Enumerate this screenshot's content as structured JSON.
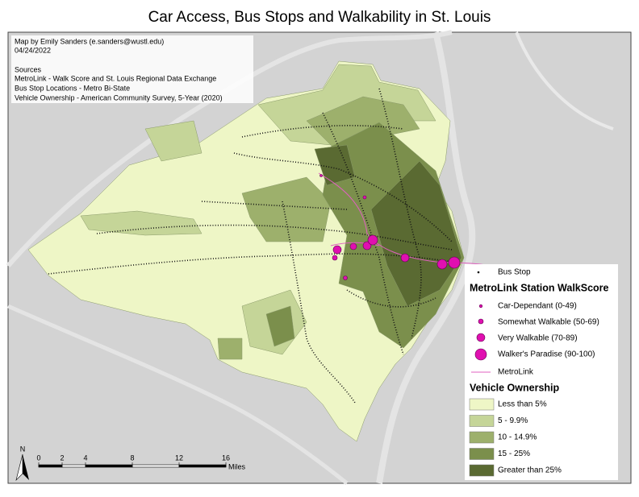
{
  "title": "Car Access, Bus Stops and Walkability in St. Louis",
  "credits": {
    "author": "Map by Emily Sanders (e.sanders@wustl.edu)",
    "date": "04/24/2022",
    "sources_heading": "Sources",
    "sources": [
      "MetroLink - Walk Score and St. Louis Regional Data Exchange",
      "Bus Stop Locations - Metro Bi-State",
      "Vehicle Ownership - American Community Survey, 5-Year (2020)"
    ]
  },
  "legend": {
    "bus_stop": "Bus Stop",
    "walkscore_title": "MetroLink Station WalkScore",
    "walkscore_classes": [
      "Car-Dependant (0-49)",
      "Somewhat Walkable (50-69)",
      "Very Walkable (70-89)",
      "Walker's Paradise (90-100)"
    ],
    "metrolink": "MetroLink",
    "ownership_title": "Vehicle Ownership",
    "ownership_classes": [
      {
        "label": "Less than 5%",
        "color": "#eef6c6"
      },
      {
        "label": "5 - 9.9%",
        "color": "#c5d598"
      },
      {
        "label": "10 - 14.9%",
        "color": "#9db06c"
      },
      {
        "label": "15 - 25%",
        "color": "#7b8f4c"
      },
      {
        "label": "Greater than 25%",
        "color": "#5a6a32"
      }
    ]
  },
  "scale_bar": {
    "ticks": [
      0,
      2,
      4,
      8,
      12,
      16
    ],
    "unit": "Miles"
  },
  "north": "N"
}
